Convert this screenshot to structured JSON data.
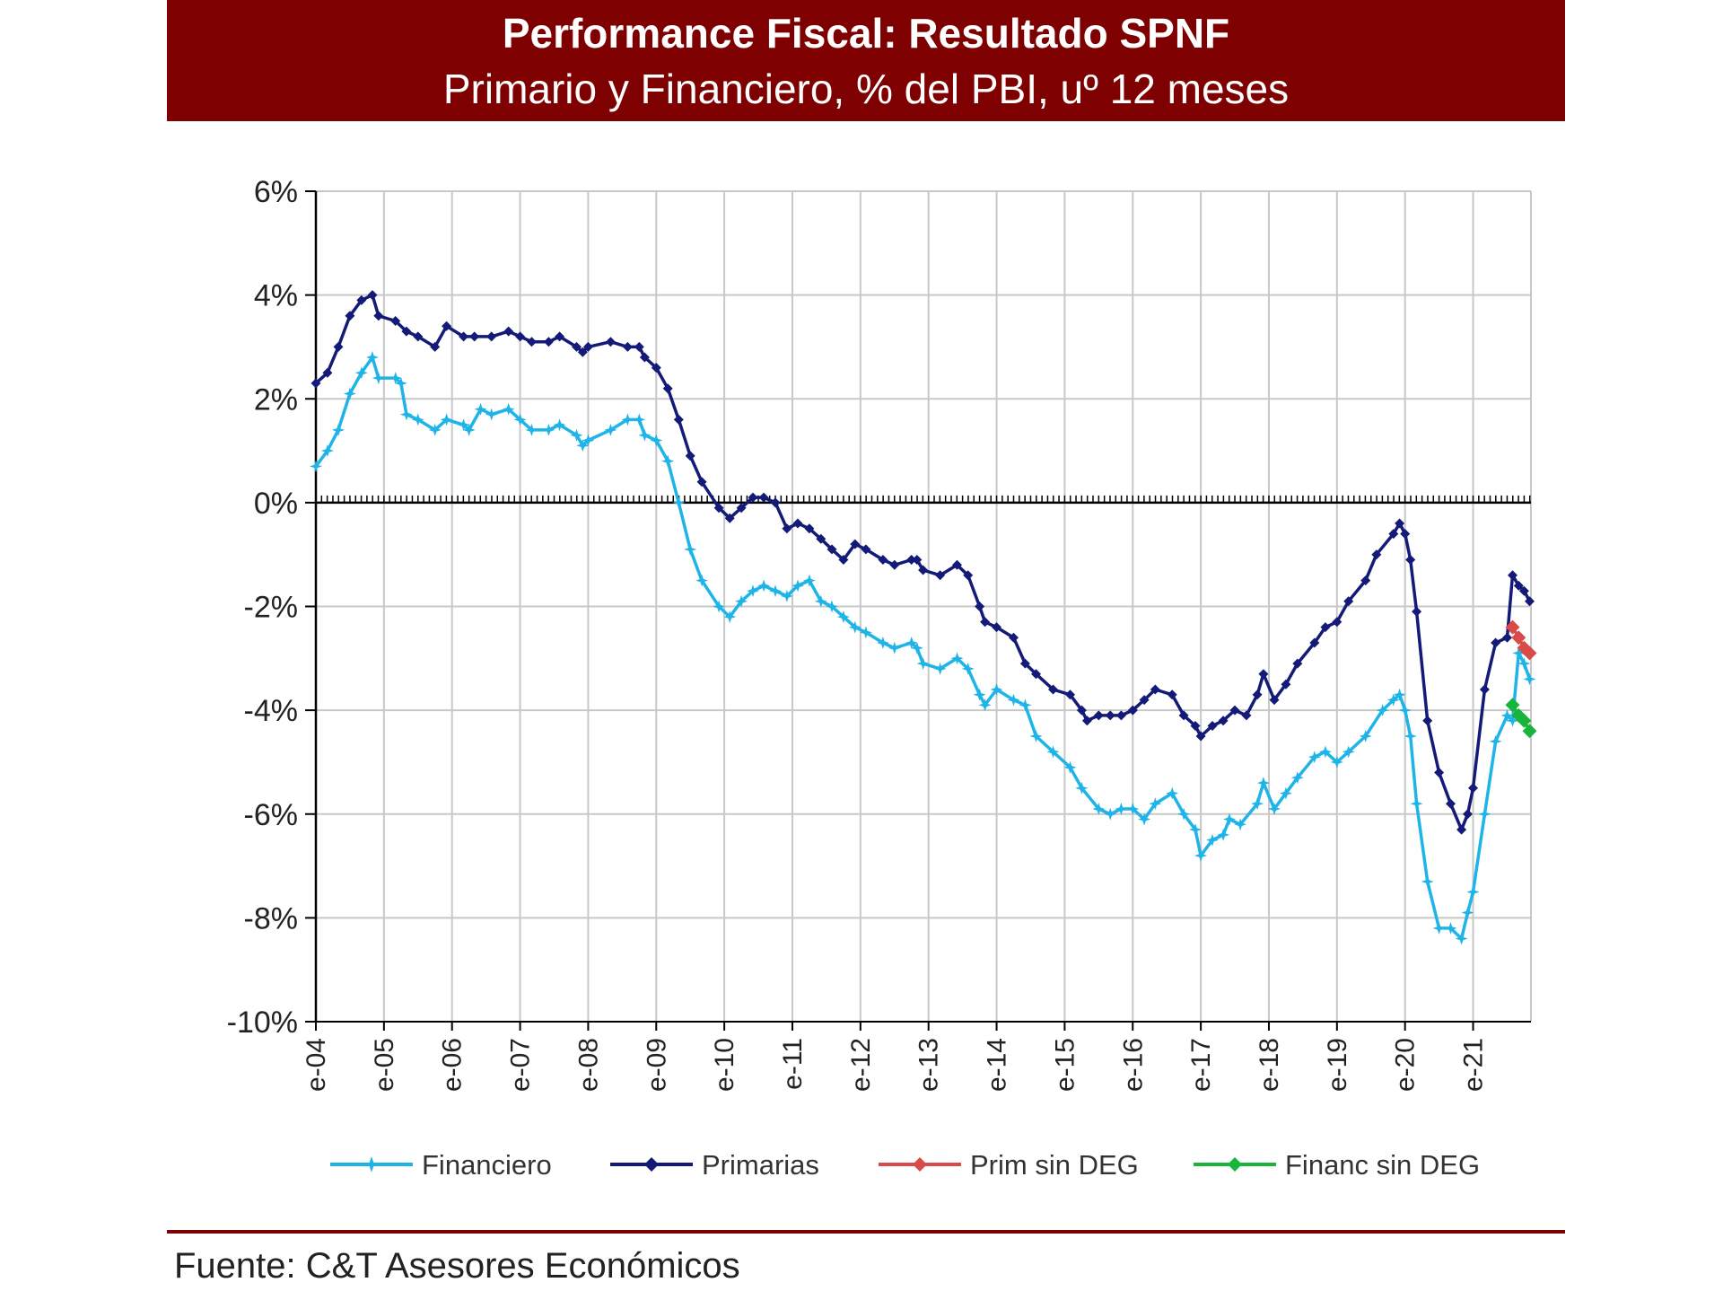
{
  "header": {
    "title": "Performance Fiscal: Resultado SPNF",
    "subtitle": "Primario y Financiero, % del PBI, uº 12 meses"
  },
  "footer": {
    "source": "Fuente: C&T Asesores Económicos"
  },
  "chart_data": {
    "type": "line",
    "title": "Performance Fiscal: Resultado SPNF",
    "subtitle": "Primario y Financiero, % del PBI, uº 12 meses",
    "xlabel": "",
    "ylabel": "",
    "ylim": [
      -10,
      6
    ],
    "xlim": [
      2004.0,
      2021.85
    ],
    "y_ticks": [
      6,
      4,
      2,
      0,
      -2,
      -4,
      -6,
      -8,
      -10
    ],
    "y_tick_labels": [
      "6%",
      "4%",
      "2%",
      "0%",
      "-2%",
      "-4%",
      "-6%",
      "-8%",
      "-10%"
    ],
    "x_ticks": [
      2004,
      2005,
      2006,
      2007,
      2008,
      2009,
      2010,
      2011,
      2012,
      2013,
      2014,
      2015,
      2016,
      2017,
      2018,
      2019,
      2020,
      2021
    ],
    "x_tick_labels": [
      "e-04",
      "e-05",
      "e-06",
      "e-07",
      "e-08",
      "e-09",
      "e-10",
      "e-11",
      "e-12",
      "e-13",
      "e-14",
      "e-15",
      "e-16",
      "e-17",
      "e-18",
      "e-19",
      "e-20",
      "e-21"
    ],
    "grid": true,
    "legend_position": "bottom",
    "series": [
      {
        "name": "Financiero",
        "color": "#1fb4e8",
        "marker": "star",
        "points": [
          [
            2004.0,
            0.7
          ],
          [
            2004.17,
            1.0
          ],
          [
            2004.33,
            1.4
          ],
          [
            2004.5,
            2.1
          ],
          [
            2004.67,
            2.5
          ],
          [
            2004.83,
            2.8
          ],
          [
            2004.92,
            2.4
          ],
          [
            2005.17,
            2.4
          ],
          [
            2005.25,
            2.3
          ],
          [
            2005.33,
            1.7
          ],
          [
            2005.5,
            1.6
          ],
          [
            2005.75,
            1.4
          ],
          [
            2005.92,
            1.6
          ],
          [
            2006.17,
            1.5
          ],
          [
            2006.25,
            1.4
          ],
          [
            2006.42,
            1.8
          ],
          [
            2006.58,
            1.7
          ],
          [
            2006.83,
            1.8
          ],
          [
            2007.0,
            1.6
          ],
          [
            2007.17,
            1.4
          ],
          [
            2007.42,
            1.4
          ],
          [
            2007.58,
            1.5
          ],
          [
            2007.83,
            1.3
          ],
          [
            2007.92,
            1.1
          ],
          [
            2008.0,
            1.2
          ],
          [
            2008.33,
            1.4
          ],
          [
            2008.58,
            1.6
          ],
          [
            2008.75,
            1.6
          ],
          [
            2008.83,
            1.3
          ],
          [
            2009.0,
            1.2
          ],
          [
            2009.17,
            0.8
          ],
          [
            2009.33,
            0.0
          ],
          [
            2009.5,
            -0.9
          ],
          [
            2009.67,
            -1.5
          ],
          [
            2009.92,
            -2.0
          ],
          [
            2010.08,
            -2.2
          ],
          [
            2010.25,
            -1.9
          ],
          [
            2010.42,
            -1.7
          ],
          [
            2010.58,
            -1.6
          ],
          [
            2010.75,
            -1.7
          ],
          [
            2010.92,
            -1.8
          ],
          [
            2011.08,
            -1.6
          ],
          [
            2011.25,
            -1.5
          ],
          [
            2011.42,
            -1.9
          ],
          [
            2011.58,
            -2.0
          ],
          [
            2011.75,
            -2.2
          ],
          [
            2011.92,
            -2.4
          ],
          [
            2012.08,
            -2.5
          ],
          [
            2012.33,
            -2.7
          ],
          [
            2012.5,
            -2.8
          ],
          [
            2012.75,
            -2.7
          ],
          [
            2012.83,
            -2.8
          ],
          [
            2012.92,
            -3.1
          ],
          [
            2013.17,
            -3.2
          ],
          [
            2013.42,
            -3.0
          ],
          [
            2013.58,
            -3.2
          ],
          [
            2013.75,
            -3.7
          ],
          [
            2013.83,
            -3.9
          ],
          [
            2014.0,
            -3.6
          ],
          [
            2014.25,
            -3.8
          ],
          [
            2014.42,
            -3.9
          ],
          [
            2014.58,
            -4.5
          ],
          [
            2014.83,
            -4.8
          ],
          [
            2015.08,
            -5.1
          ],
          [
            2015.25,
            -5.5
          ],
          [
            2015.5,
            -5.9
          ],
          [
            2015.67,
            -6.0
          ],
          [
            2015.83,
            -5.9
          ],
          [
            2016.0,
            -5.9
          ],
          [
            2016.17,
            -6.1
          ],
          [
            2016.33,
            -5.8
          ],
          [
            2016.58,
            -5.6
          ],
          [
            2016.75,
            -6.0
          ],
          [
            2016.92,
            -6.3
          ],
          [
            2017.0,
            -6.8
          ],
          [
            2017.17,
            -6.5
          ],
          [
            2017.33,
            -6.4
          ],
          [
            2017.42,
            -6.1
          ],
          [
            2017.58,
            -6.2
          ],
          [
            2017.83,
            -5.8
          ],
          [
            2017.92,
            -5.4
          ],
          [
            2018.08,
            -5.9
          ],
          [
            2018.25,
            -5.6
          ],
          [
            2018.42,
            -5.3
          ],
          [
            2018.67,
            -4.9
          ],
          [
            2018.83,
            -4.8
          ],
          [
            2019.0,
            -5.0
          ],
          [
            2019.17,
            -4.8
          ],
          [
            2019.42,
            -4.5
          ],
          [
            2019.67,
            -4.0
          ],
          [
            2019.83,
            -3.8
          ],
          [
            2019.92,
            -3.7
          ],
          [
            2020.0,
            -4.0
          ],
          [
            2020.08,
            -4.5
          ],
          [
            2020.17,
            -5.8
          ],
          [
            2020.33,
            -7.3
          ],
          [
            2020.5,
            -8.2
          ],
          [
            2020.67,
            -8.2
          ],
          [
            2020.83,
            -8.4
          ],
          [
            2020.92,
            -7.9
          ],
          [
            2021.0,
            -7.5
          ],
          [
            2021.17,
            -6.0
          ],
          [
            2021.33,
            -4.6
          ],
          [
            2021.5,
            -4.1
          ],
          [
            2021.58,
            -4.2
          ],
          [
            2021.67,
            -2.9
          ],
          [
            2021.75,
            -3.1
          ],
          [
            2021.83,
            -3.4
          ]
        ]
      },
      {
        "name": "Primarias",
        "color": "#141a78",
        "marker": "diamond",
        "points": [
          [
            2004.0,
            2.3
          ],
          [
            2004.17,
            2.5
          ],
          [
            2004.33,
            3.0
          ],
          [
            2004.5,
            3.6
          ],
          [
            2004.67,
            3.9
          ],
          [
            2004.83,
            4.0
          ],
          [
            2004.92,
            3.6
          ],
          [
            2005.17,
            3.5
          ],
          [
            2005.33,
            3.3
          ],
          [
            2005.5,
            3.2
          ],
          [
            2005.75,
            3.0
          ],
          [
            2005.92,
            3.4
          ],
          [
            2006.17,
            3.2
          ],
          [
            2006.33,
            3.2
          ],
          [
            2006.58,
            3.2
          ],
          [
            2006.83,
            3.3
          ],
          [
            2007.0,
            3.2
          ],
          [
            2007.17,
            3.1
          ],
          [
            2007.42,
            3.1
          ],
          [
            2007.58,
            3.2
          ],
          [
            2007.83,
            3.0
          ],
          [
            2007.92,
            2.9
          ],
          [
            2008.0,
            3.0
          ],
          [
            2008.33,
            3.1
          ],
          [
            2008.58,
            3.0
          ],
          [
            2008.75,
            3.0
          ],
          [
            2008.83,
            2.8
          ],
          [
            2009.0,
            2.6
          ],
          [
            2009.17,
            2.2
          ],
          [
            2009.33,
            1.6
          ],
          [
            2009.5,
            0.9
          ],
          [
            2009.67,
            0.4
          ],
          [
            2009.92,
            -0.1
          ],
          [
            2010.08,
            -0.3
          ],
          [
            2010.25,
            -0.1
          ],
          [
            2010.42,
            0.1
          ],
          [
            2010.58,
            0.1
          ],
          [
            2010.75,
            0.0
          ],
          [
            2010.92,
            -0.5
          ],
          [
            2011.08,
            -0.4
          ],
          [
            2011.25,
            -0.5
          ],
          [
            2011.42,
            -0.7
          ],
          [
            2011.58,
            -0.9
          ],
          [
            2011.75,
            -1.1
          ],
          [
            2011.92,
            -0.8
          ],
          [
            2012.08,
            -0.9
          ],
          [
            2012.33,
            -1.1
          ],
          [
            2012.5,
            -1.2
          ],
          [
            2012.75,
            -1.1
          ],
          [
            2012.83,
            -1.1
          ],
          [
            2012.92,
            -1.3
          ],
          [
            2013.17,
            -1.4
          ],
          [
            2013.42,
            -1.2
          ],
          [
            2013.58,
            -1.4
          ],
          [
            2013.75,
            -2.0
          ],
          [
            2013.83,
            -2.3
          ],
          [
            2014.0,
            -2.4
          ],
          [
            2014.25,
            -2.6
          ],
          [
            2014.42,
            -3.1
          ],
          [
            2014.58,
            -3.3
          ],
          [
            2014.83,
            -3.6
          ],
          [
            2015.08,
            -3.7
          ],
          [
            2015.25,
            -4.0
          ],
          [
            2015.33,
            -4.2
          ],
          [
            2015.5,
            -4.1
          ],
          [
            2015.67,
            -4.1
          ],
          [
            2015.83,
            -4.1
          ],
          [
            2016.0,
            -4.0
          ],
          [
            2016.17,
            -3.8
          ],
          [
            2016.33,
            -3.6
          ],
          [
            2016.58,
            -3.7
          ],
          [
            2016.75,
            -4.1
          ],
          [
            2016.92,
            -4.3
          ],
          [
            2017.0,
            -4.5
          ],
          [
            2017.17,
            -4.3
          ],
          [
            2017.33,
            -4.2
          ],
          [
            2017.5,
            -4.0
          ],
          [
            2017.67,
            -4.1
          ],
          [
            2017.83,
            -3.7
          ],
          [
            2017.92,
            -3.3
          ],
          [
            2018.08,
            -3.8
          ],
          [
            2018.25,
            -3.5
          ],
          [
            2018.42,
            -3.1
          ],
          [
            2018.67,
            -2.7
          ],
          [
            2018.83,
            -2.4
          ],
          [
            2019.0,
            -2.3
          ],
          [
            2019.17,
            -1.9
          ],
          [
            2019.42,
            -1.5
          ],
          [
            2019.58,
            -1.0
          ],
          [
            2019.83,
            -0.6
          ],
          [
            2019.92,
            -0.4
          ],
          [
            2020.0,
            -0.6
          ],
          [
            2020.08,
            -1.1
          ],
          [
            2020.17,
            -2.1
          ],
          [
            2020.33,
            -4.2
          ],
          [
            2020.5,
            -5.2
          ],
          [
            2020.67,
            -5.8
          ],
          [
            2020.83,
            -6.3
          ],
          [
            2020.92,
            -6.0
          ],
          [
            2021.0,
            -5.5
          ],
          [
            2021.17,
            -3.6
          ],
          [
            2021.33,
            -2.7
          ],
          [
            2021.5,
            -2.6
          ],
          [
            2021.58,
            -1.4
          ],
          [
            2021.67,
            -1.6
          ],
          [
            2021.75,
            -1.7
          ],
          [
            2021.83,
            -1.9
          ]
        ]
      },
      {
        "name": "Prim sin DEG",
        "color": "#d94a4a",
        "marker": "diamond",
        "points": [
          [
            2021.58,
            -2.4
          ],
          [
            2021.67,
            -2.6
          ],
          [
            2021.75,
            -2.8
          ],
          [
            2021.83,
            -2.9
          ]
        ]
      },
      {
        "name": "Financ sin DEG",
        "color": "#18b43c",
        "marker": "diamond",
        "points": [
          [
            2021.58,
            -3.9
          ],
          [
            2021.67,
            -4.1
          ],
          [
            2021.75,
            -4.2
          ],
          [
            2021.83,
            -4.4
          ]
        ]
      }
    ]
  }
}
